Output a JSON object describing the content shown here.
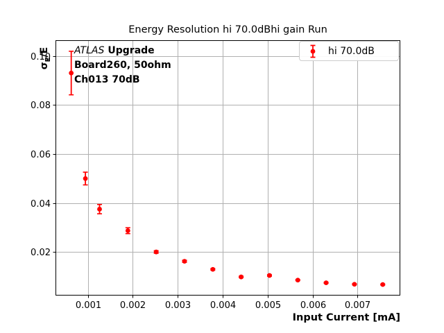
{
  "annotation": {
    "atlas": "ATLAS",
    "upgrade": "Upgrade",
    "board": "Board260, 50ohm",
    "channel": "Ch013 70dB"
  },
  "legend": {
    "label": "hi 70.0dB",
    "position": "upper right"
  },
  "colors": {
    "series": "#ff0000",
    "grid": "#b0b0b0",
    "axis": "#000000",
    "legend_border": "#cccccc",
    "background": "#ffffff"
  },
  "chart_data": {
    "type": "scatter",
    "title": "Energy Resolution hi 70.0dBhi gain Run",
    "xlabel": "Input Current [mA]",
    "ylabel": "σ_E/E",
    "ylabel_parts": {
      "sym": "σ",
      "sub": "E",
      "rest": "/E"
    },
    "xlim": [
      0.00028,
      0.00795
    ],
    "ylim": [
      0.0022,
      0.1065
    ],
    "xticks": [
      0.001,
      0.002,
      0.003,
      0.004,
      0.005,
      0.006,
      0.007
    ],
    "xtick_labels": [
      "0.001",
      "0.002",
      "0.003",
      "0.004",
      "0.005",
      "0.006",
      "0.007"
    ],
    "yticks": [
      0.02,
      0.04,
      0.06,
      0.08,
      0.1
    ],
    "ytick_labels": [
      "0.02",
      "0.04",
      "0.06",
      "0.08",
      "0.10"
    ],
    "grid": true,
    "legend_position": "upper right",
    "series": [
      {
        "name": "hi 70.0dB",
        "color": "#ff0000",
        "marker": "o",
        "x": [
          0.00063,
          0.000945,
          0.00126,
          0.00189,
          0.00252,
          0.00315,
          0.00378,
          0.00441,
          0.00504,
          0.00567,
          0.0063,
          0.00693,
          0.00756
        ],
        "y": [
          0.0931,
          0.05,
          0.0375,
          0.0287,
          0.02,
          0.0162,
          0.0129,
          0.0098,
          0.0104,
          0.0085,
          0.0074,
          0.0068,
          0.0067
        ],
        "yerr": [
          0.0089,
          0.0026,
          0.0019,
          0.0012,
          0.0005,
          0.0004,
          0.0003,
          0.0003,
          0.0003,
          0.0002,
          0.0002,
          0.0002,
          0.0002
        ]
      }
    ]
  }
}
